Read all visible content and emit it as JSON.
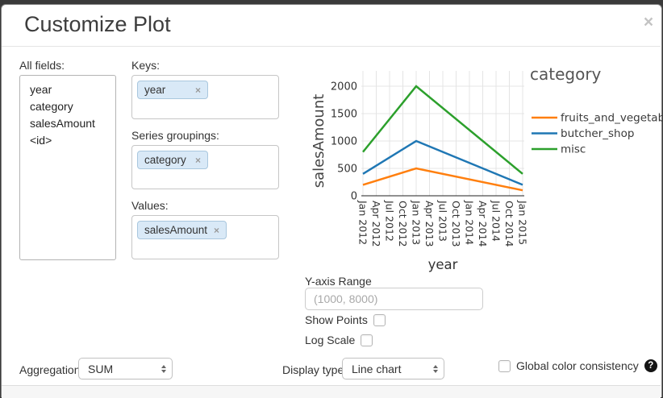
{
  "dialog": {
    "title": "Customize Plot",
    "close_glyph": "×"
  },
  "fields_panel": {
    "label": "All fields:",
    "items": [
      "year",
      "category",
      "salesAmount",
      "<id>"
    ]
  },
  "selectors": {
    "keys": {
      "label": "Keys:",
      "tags": [
        "year"
      ],
      "remove_glyph": "×"
    },
    "series_groupings": {
      "label": "Series groupings:",
      "tags": [
        "category"
      ],
      "remove_glyph": "×"
    },
    "values": {
      "label": "Values:",
      "tags": [
        "salesAmount"
      ],
      "remove_glyph": "×"
    }
  },
  "chart_data": {
    "type": "line",
    "title": "",
    "legend_title": "category",
    "xlabel": "year",
    "ylabel": "salesAmount",
    "x_tick_labels": [
      "Jan 2012",
      "Apr 2012",
      "Jul 2012",
      "Oct 2012",
      "Jan 2013",
      "Apr 2013",
      "Jul 2013",
      "Oct 2013",
      "Jan 2014",
      "Apr 2014",
      "Jul 2014",
      "Oct 2014",
      "Jan 2015"
    ],
    "y_tick_labels": [
      0,
      500,
      1000,
      1500,
      2000
    ],
    "ylim": [
      0,
      2000
    ],
    "grid": true,
    "legend_position": "right",
    "points_x": [
      "Jan 2012",
      "Jan 2013",
      "Jan 2015"
    ],
    "points_x_tick_index": [
      0,
      4,
      12
    ],
    "series": [
      {
        "name": "fruits_and_vegetables",
        "color": "#ff7f0e",
        "values": [
          200,
          500,
          100
        ]
      },
      {
        "name": "butcher_shop",
        "color": "#1f77b4",
        "values": [
          400,
          1000,
          200
        ]
      },
      {
        "name": "misc",
        "color": "#2ca02c",
        "values": [
          800,
          2000,
          400
        ]
      }
    ]
  },
  "options": {
    "y_axis_range": {
      "label": "Y-axis Range",
      "placeholder": "(1000, 8000)",
      "value": ""
    },
    "show_points": {
      "label": "Show Points",
      "checked": false
    },
    "log_scale": {
      "label": "Log Scale",
      "checked": false
    }
  },
  "footer_controls": {
    "aggregation": {
      "label": "Aggregation:",
      "value": "SUM"
    },
    "display_type": {
      "label": "Display type:",
      "value": "Line chart"
    },
    "global_color": {
      "label": "Global color consistency",
      "checked": false,
      "help_glyph": "?"
    }
  },
  "colors": {
    "tag_bg": "#d9e9f7",
    "tag_border": "#a9c7de",
    "grid": "#e4e4e4",
    "axis": "#222222",
    "backdrop": "#3a3a3a"
  }
}
